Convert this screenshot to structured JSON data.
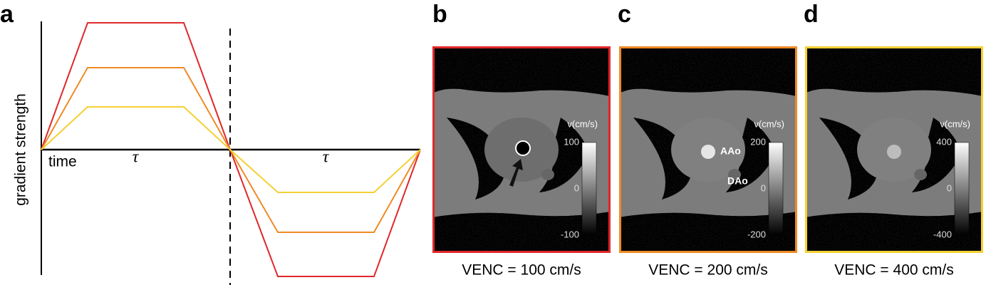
{
  "panel_labels": [
    "a",
    "b",
    "c",
    "d"
  ],
  "waveform": {
    "y_label": "gradient strength",
    "x_label": "time",
    "tau_labels": [
      "τ",
      "τ"
    ]
  },
  "images": [
    {
      "colorbar_title": "v(cm/s)",
      "colorbar_ticks": [
        "100",
        "0",
        "-100"
      ],
      "caption": "VENC = 100 cm/s"
    },
    {
      "colorbar_title": "v(cm/s)",
      "colorbar_ticks": [
        "200",
        "0",
        "-200"
      ],
      "caption": "VENC = 200 cm/s",
      "annotations": [
        "AAo",
        "DAo"
      ]
    },
    {
      "colorbar_title": "v(cm/s)",
      "colorbar_ticks": [
        "400",
        "0",
        "-400"
      ],
      "caption": "VENC = 400 cm/s"
    }
  ]
}
